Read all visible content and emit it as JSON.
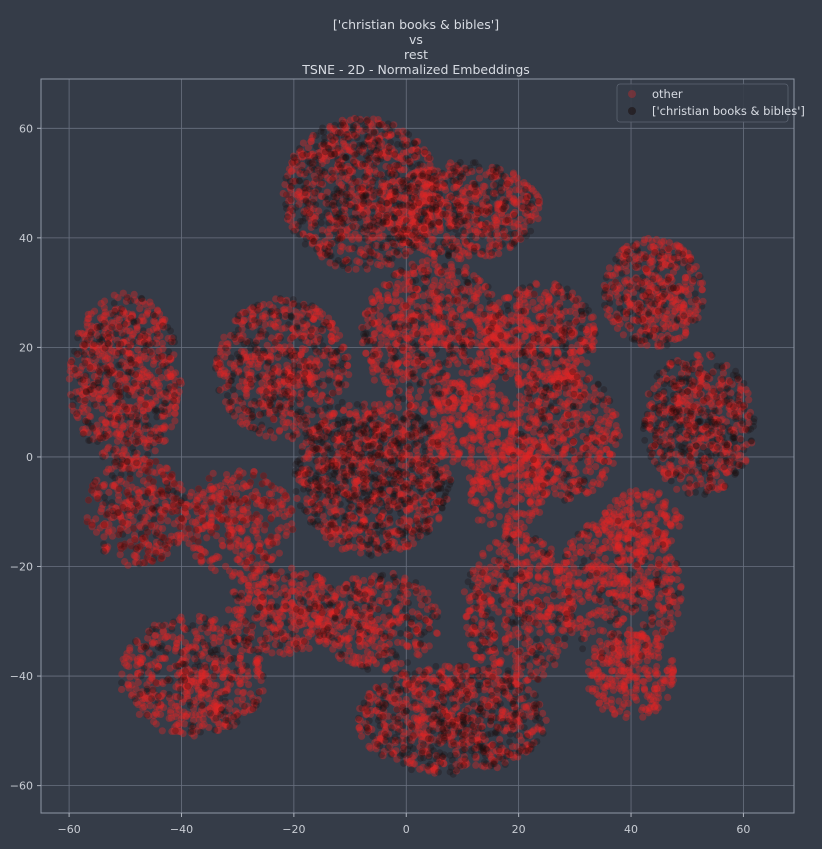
{
  "chart_data": {
    "type": "scatter",
    "title_lines": [
      "['christian books & bibles']",
      "vs",
      "rest",
      "TSNE - 2D - Normalized Embeddings"
    ],
    "xlabel": "",
    "ylabel": "",
    "xlim": [
      -65,
      69
    ],
    "ylim": [
      -65,
      69
    ],
    "xticks": [
      -60,
      -40,
      -20,
      0,
      20,
      40,
      60
    ],
    "yticks": [
      -60,
      -40,
      -20,
      0,
      20,
      40,
      60
    ],
    "grid": true,
    "legend_position": "top-right",
    "series": [
      {
        "name": "other",
        "color": "#e02424",
        "clusters": [
          {
            "cx": -8,
            "cy": 48,
            "rx": 14,
            "ry": 14,
            "count": 600
          },
          {
            "cx": 10,
            "cy": 45,
            "rx": 14,
            "ry": 9,
            "count": 450
          },
          {
            "cx": 44,
            "cy": 30,
            "rx": 9,
            "ry": 10,
            "count": 350
          },
          {
            "cx": 52,
            "cy": 6,
            "rx": 10,
            "ry": 13,
            "count": 400
          },
          {
            "cx": 28,
            "cy": 4,
            "rx": 10,
            "ry": 12,
            "count": 400
          },
          {
            "cx": 42,
            "cy": -12,
            "rx": 7,
            "ry": 6,
            "count": 150
          },
          {
            "cx": 38,
            "cy": -24,
            "rx": 11,
            "ry": 14,
            "count": 450
          },
          {
            "cx": 40,
            "cy": -40,
            "rx": 8,
            "ry": 8,
            "count": 220
          },
          {
            "cx": 20,
            "cy": -28,
            "rx": 10,
            "ry": 14,
            "count": 400
          },
          {
            "cx": 8,
            "cy": -48,
            "rx": 17,
            "ry": 10,
            "count": 550
          },
          {
            "cx": -5,
            "cy": -30,
            "rx": 11,
            "ry": 9,
            "count": 300
          },
          {
            "cx": -22,
            "cy": -28,
            "rx": 10,
            "ry": 8,
            "count": 280
          },
          {
            "cx": -38,
            "cy": -40,
            "rx": 13,
            "ry": 11,
            "count": 450
          },
          {
            "cx": -48,
            "cy": -10,
            "rx": 9,
            "ry": 10,
            "count": 300
          },
          {
            "cx": -30,
            "cy": -12,
            "rx": 10,
            "ry": 10,
            "count": 330
          },
          {
            "cx": -50,
            "cy": 14,
            "rx": 10,
            "ry": 16,
            "count": 550
          },
          {
            "cx": -22,
            "cy": 16,
            "rx": 12,
            "ry": 13,
            "count": 480
          },
          {
            "cx": -6,
            "cy": -4,
            "rx": 14,
            "ry": 14,
            "count": 650
          },
          {
            "cx": 5,
            "cy": 22,
            "rx": 13,
            "ry": 14,
            "count": 600
          },
          {
            "cx": 24,
            "cy": 22,
            "rx": 10,
            "ry": 10,
            "count": 350
          },
          {
            "cx": 18,
            "cy": -6,
            "rx": 7,
            "ry": 9,
            "count": 220
          },
          {
            "cx": 12,
            "cy": 6,
            "rx": 8,
            "ry": 8,
            "count": 220
          }
        ]
      },
      {
        "name": "['christian books & bibles']",
        "color": "#1a0c0c",
        "clusters": [
          {
            "cx": -8,
            "cy": 48,
            "rx": 14,
            "ry": 14,
            "count": 380
          },
          {
            "cx": 10,
            "cy": 45,
            "rx": 14,
            "ry": 9,
            "count": 180
          },
          {
            "cx": 44,
            "cy": 30,
            "rx": 9,
            "ry": 10,
            "count": 110
          },
          {
            "cx": 52,
            "cy": 6,
            "rx": 10,
            "ry": 13,
            "count": 260
          },
          {
            "cx": 28,
            "cy": 4,
            "rx": 10,
            "ry": 12,
            "count": 90
          },
          {
            "cx": 38,
            "cy": -24,
            "rx": 11,
            "ry": 14,
            "count": 60
          },
          {
            "cx": 20,
            "cy": -28,
            "rx": 10,
            "ry": 14,
            "count": 90
          },
          {
            "cx": 8,
            "cy": -48,
            "rx": 17,
            "ry": 10,
            "count": 320
          },
          {
            "cx": -5,
            "cy": -30,
            "rx": 11,
            "ry": 9,
            "count": 90
          },
          {
            "cx": -22,
            "cy": -28,
            "rx": 10,
            "ry": 8,
            "count": 60
          },
          {
            "cx": -38,
            "cy": -40,
            "rx": 13,
            "ry": 11,
            "count": 120
          },
          {
            "cx": -48,
            "cy": -10,
            "rx": 9,
            "ry": 10,
            "count": 120
          },
          {
            "cx": -30,
            "cy": -12,
            "rx": 10,
            "ry": 10,
            "count": 60
          },
          {
            "cx": -50,
            "cy": 14,
            "rx": 10,
            "ry": 16,
            "count": 200
          },
          {
            "cx": -22,
            "cy": 16,
            "rx": 12,
            "ry": 13,
            "count": 200
          },
          {
            "cx": -6,
            "cy": -4,
            "rx": 14,
            "ry": 14,
            "count": 480
          },
          {
            "cx": 5,
            "cy": 22,
            "rx": 13,
            "ry": 14,
            "count": 140
          },
          {
            "cx": 24,
            "cy": 22,
            "rx": 10,
            "ry": 10,
            "count": 80
          }
        ]
      }
    ]
  }
}
